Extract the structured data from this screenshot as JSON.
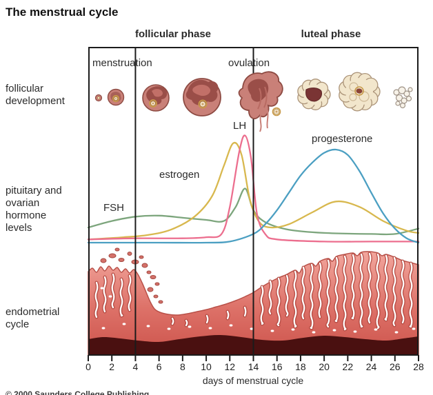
{
  "title": "The menstrual cycle",
  "phases": {
    "follicular": "follicular phase",
    "luteal": "luteal phase"
  },
  "events": {
    "menstruation": "menstruation",
    "ovulation": "ovulation"
  },
  "row_labels": {
    "follicular_development": "follicular\ndevelopment",
    "hormone_levels": "pituitary and\novarian\nhormone\nlevels",
    "endometrial_cycle": "endometrial\ncycle"
  },
  "curve_labels": {
    "fsh": "FSH",
    "estrogen": "estrogen",
    "lh": "LH",
    "progesterone": "progesterone"
  },
  "axis": {
    "ticks": [
      "0",
      "2",
      "4",
      "6",
      "8",
      "10",
      "12",
      "14",
      "16",
      "18",
      "20",
      "22",
      "24",
      "26",
      "28"
    ],
    "xlabel": "days of menstrual cycle"
  },
  "copyright": "© 2000 Saunders College Publishing",
  "colors": {
    "fsh": "#7ca57c",
    "estrogen": "#d8b84e",
    "lh": "#ec6e8e",
    "progesterone": "#4b9fc2",
    "frame": "#1b1b1b",
    "endometrium_top": "#f2a69d",
    "endometrium_mid": "#dd7168",
    "endometrium_bottom": "#cd544c",
    "basal_layer": "#4a1010",
    "follicle_body": "#c98078",
    "follicle_outline": "#8d4a42",
    "corpus_luteum": "#f2e6cc",
    "corpus_luteum_outline": "#ab9378",
    "oocyte": "#f4e6cc",
    "oocyte_ring": "#c89a4a"
  },
  "illustration_stages": [
    "primordial-follicle-icon",
    "primary-follicle-icon",
    "growing-follicle-icon",
    "mature-follicle-icon",
    "ovulating-follicle-icon",
    "corpus-luteum-early-icon",
    "corpus-luteum-mature-icon",
    "corpus-albicans-icon"
  ],
  "chart_data": {
    "type": "line",
    "title": "pituitary and ovarian hormone levels",
    "xlabel": "days of menstrual cycle",
    "x_range": [
      0,
      28
    ],
    "y_axis": "relative hormone level (unlabeled, 0-100)",
    "grid": false,
    "legend_position": "inline-labels",
    "phase_markers": {
      "menstruation_days": [
        0,
        4
      ],
      "follicular_phase_days": [
        0,
        14
      ],
      "luteal_phase_days": [
        14,
        28
      ],
      "ovulation_day": 14
    },
    "series": [
      {
        "name": "FSH",
        "color": "#7ca57c",
        "points": [
          [
            0,
            14
          ],
          [
            2,
            20
          ],
          [
            4,
            24
          ],
          [
            6,
            25
          ],
          [
            8,
            23
          ],
          [
            10,
            21
          ],
          [
            11.5,
            20
          ],
          [
            12.5,
            33
          ],
          [
            13.3,
            50
          ],
          [
            14,
            30
          ],
          [
            15,
            19
          ],
          [
            17,
            12
          ],
          [
            20,
            9
          ],
          [
            24,
            8
          ],
          [
            26,
            8
          ],
          [
            28,
            13
          ]
        ]
      },
      {
        "name": "estrogen",
        "color": "#d8b84e",
        "points": [
          [
            0,
            3
          ],
          [
            3,
            5
          ],
          [
            5,
            7
          ],
          [
            7,
            12
          ],
          [
            9,
            24
          ],
          [
            10.5,
            43
          ],
          [
            11.5,
            71
          ],
          [
            12.3,
            92
          ],
          [
            13,
            81
          ],
          [
            13.7,
            40
          ],
          [
            14.5,
            19
          ],
          [
            15.5,
            14
          ],
          [
            17,
            17
          ],
          [
            19,
            28
          ],
          [
            21,
            38
          ],
          [
            23,
            33
          ],
          [
            25,
            20
          ],
          [
            27,
            11
          ],
          [
            28,
            9
          ]
        ]
      },
      {
        "name": "LH",
        "color": "#ec6e8e",
        "points": [
          [
            0,
            3
          ],
          [
            4,
            4
          ],
          [
            8,
            4
          ],
          [
            10,
            5
          ],
          [
            11.3,
            8
          ],
          [
            12,
            33
          ],
          [
            12.8,
            84
          ],
          [
            13.3,
            99
          ],
          [
            13.8,
            78
          ],
          [
            14.3,
            27
          ],
          [
            15,
            8
          ],
          [
            16,
            3
          ],
          [
            20,
            1
          ],
          [
            24,
            1
          ],
          [
            28,
            1
          ]
        ]
      },
      {
        "name": "progesterone",
        "color": "#4b9fc2",
        "points": [
          [
            0,
            0
          ],
          [
            6,
            0
          ],
          [
            10,
            0
          ],
          [
            12,
            1
          ],
          [
            14,
            8
          ],
          [
            15,
            17
          ],
          [
            16,
            30
          ],
          [
            17,
            46
          ],
          [
            18,
            62
          ],
          [
            19,
            74
          ],
          [
            20,
            83
          ],
          [
            21,
            86
          ],
          [
            22,
            81
          ],
          [
            23,
            66
          ],
          [
            24,
            46
          ],
          [
            25,
            27
          ],
          [
            26,
            13
          ],
          [
            27,
            4
          ],
          [
            28,
            0
          ]
        ]
      }
    ]
  }
}
